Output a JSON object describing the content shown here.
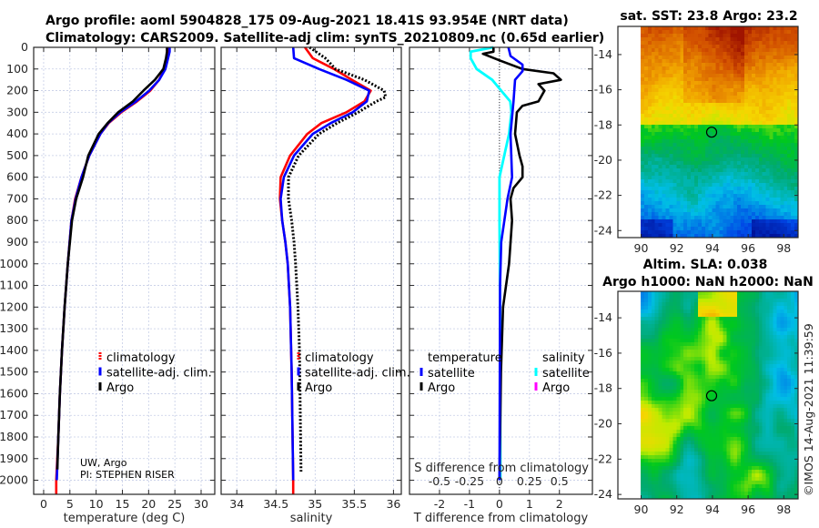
{
  "title": {
    "line1": "Argo profile: aoml 5904828_175 09-Aug-2021 18.41S 93.954E (NRT data)",
    "line2": "Climatology: CARS2009. Satellite-adj clim: synTS_20210809.nc (0.65d earlier)"
  },
  "colors": {
    "climatology": "#ff0000",
    "satellite": "#0000ff",
    "argo": "#000000",
    "salinity_satellite": "#00ffff",
    "salinity_argo": "#ff00ff",
    "grid": "#c5cde6"
  },
  "depth_axis": {
    "ticks": [
      0,
      100,
      200,
      300,
      400,
      500,
      600,
      700,
      800,
      900,
      1000,
      1100,
      1200,
      1300,
      1400,
      1500,
      1600,
      1700,
      1800,
      1900,
      2000
    ],
    "labels": [
      "0",
      "100",
      "200",
      "300",
      "400",
      "500",
      "600",
      "700",
      "800",
      "900",
      "1000",
      "1100",
      "1200",
      "1300",
      "1400",
      "1500",
      "1600",
      "1700",
      "1800",
      "1900",
      "2000"
    ],
    "ylim": [
      0,
      2065
    ]
  },
  "chart_data": [
    {
      "type": "line",
      "name": "temperature",
      "xlabel": "temperature (deg C)",
      "ylabel": "depth",
      "xlim": [
        -1.9,
        32.6
      ],
      "xticks": [
        0,
        5,
        10,
        15,
        20,
        25,
        30
      ],
      "xtick_labels": [
        "0",
        "5",
        "10",
        "15",
        "20",
        "25",
        "30"
      ],
      "legend": [
        "climatology",
        "satellite-adj. clim.",
        "Argo"
      ],
      "credit": [
        "UW, Argo",
        "PI: STEPHEN RISER"
      ],
      "series": [
        {
          "name": "climatology",
          "depth": [
            0,
            20,
            50,
            100,
            150,
            200,
            250,
            300,
            350,
            400,
            500,
            600,
            700,
            800,
            1000,
            1200,
            1400,
            1600,
            1800,
            2000,
            2065
          ],
          "values": [
            23.8,
            23.8,
            23.6,
            23.0,
            22.0,
            20.3,
            17.8,
            14.8,
            12.4,
            10.8,
            8.7,
            7.2,
            6.0,
            5.3,
            4.6,
            4.0,
            3.5,
            3.1,
            2.8,
            2.4,
            2.4
          ]
        },
        {
          "name": "satellite-adj. clim.",
          "depth": [
            0,
            20,
            50,
            100,
            150,
            200,
            250,
            300,
            350,
            400,
            500,
            600,
            700,
            800,
            1000,
            1200,
            1400,
            1600,
            1800,
            2000
          ],
          "values": [
            24.0,
            24.0,
            23.7,
            23.2,
            22.0,
            20.1,
            17.6,
            14.6,
            12.3,
            10.8,
            8.7,
            7.2,
            6.1,
            5.3,
            4.6,
            4.0,
            3.5,
            3.1,
            2.8,
            2.5
          ]
        },
        {
          "name": "Argo",
          "depth": [
            0,
            20,
            50,
            100,
            150,
            200,
            250,
            300,
            350,
            400,
            500,
            600,
            700,
            800,
            1000,
            1200,
            1400,
            1600,
            1800,
            1950
          ],
          "values": [
            23.5,
            23.5,
            23.3,
            22.8,
            21.2,
            19.0,
            17.0,
            14.2,
            12.2,
            10.5,
            8.5,
            7.5,
            6.2,
            5.4,
            4.6,
            4.0,
            3.5,
            3.1,
            2.8,
            2.6
          ]
        }
      ]
    },
    {
      "type": "line",
      "name": "salinity",
      "xlabel": "salinity",
      "xlim": [
        33.8,
        36.1
      ],
      "xticks": [
        34,
        34.5,
        35,
        35.5,
        36
      ],
      "xtick_labels": [
        "34",
        "34.5",
        "35",
        "35.5",
        "36"
      ],
      "legend": [
        "climatology",
        "satellite-adj. clim.",
        "Argo"
      ],
      "series": [
        {
          "name": "climatology",
          "depth": [
            0,
            50,
            100,
            150,
            200,
            250,
            300,
            350,
            400,
            500,
            600,
            700,
            800,
            900,
            1000,
            1200,
            1500,
            2000,
            2065
          ],
          "values": [
            34.87,
            34.97,
            35.24,
            35.47,
            35.71,
            35.63,
            35.4,
            35.08,
            34.9,
            34.68,
            34.56,
            34.55,
            34.58,
            34.62,
            34.65,
            34.68,
            34.7,
            34.72,
            34.72
          ]
        },
        {
          "name": "satellite-adj. clim.",
          "depth": [
            0,
            50,
            100,
            150,
            200,
            250,
            300,
            350,
            400,
            500,
            600,
            700,
            800,
            900,
            1000,
            1200,
            1500,
            2000
          ],
          "values": [
            34.72,
            34.73,
            35.05,
            35.4,
            35.69,
            35.66,
            35.48,
            35.2,
            34.97,
            34.73,
            34.6,
            34.56,
            34.58,
            34.62,
            34.65,
            34.68,
            34.7,
            34.72
          ]
        },
        {
          "name": "Argo",
          "depth": [
            0,
            50,
            100,
            150,
            200,
            230,
            250,
            300,
            350,
            400,
            500,
            600,
            700,
            800,
            900,
            1000,
            1200,
            1400,
            1960
          ],
          "values": [
            34.93,
            35.13,
            35.26,
            35.63,
            35.88,
            35.9,
            35.78,
            35.55,
            35.28,
            35.05,
            34.79,
            34.66,
            34.66,
            34.7,
            34.73,
            34.75,
            34.78,
            34.8,
            34.82
          ]
        }
      ]
    },
    {
      "type": "line",
      "name": "difference",
      "xlabel": "T difference from climatology",
      "xlim": [
        -3.0,
        3.1
      ],
      "xticks": [
        -2,
        -1,
        0,
        1,
        2
      ],
      "xtick_labels": [
        "-2",
        "-1",
        "0",
        "1",
        "2"
      ],
      "s_label": "S difference from climatology",
      "s_ticks": [
        -0.5,
        -0.25,
        0,
        0.25,
        0.5
      ],
      "s_tick_labels": [
        "-0.5",
        "-0.25",
        "0",
        "0.25",
        "0.5"
      ],
      "legend_temperature": {
        "heading": "temperature",
        "items": [
          "satellite",
          "Argo"
        ]
      },
      "legend_salinity": {
        "heading": "salinity",
        "items": [
          "satellite",
          "Argo"
        ]
      },
      "series": [
        {
          "name": "T satellite",
          "units": "degC",
          "depth": [
            0,
            40,
            80,
            110,
            150,
            250,
            400,
            600,
            700,
            900,
            1100,
            2000
          ],
          "values": [
            0.3,
            0.37,
            0.77,
            0.77,
            0.52,
            0.47,
            0.37,
            0.42,
            0.27,
            0.06,
            0.02,
            0.0
          ]
        },
        {
          "name": "T Argo",
          "units": "degC",
          "depth": [
            0,
            20,
            30,
            60,
            100,
            120,
            150,
            170,
            200,
            250,
            270,
            300,
            400,
            500,
            550,
            600,
            650,
            700,
            800,
            1000,
            1200,
            1500,
            2000
          ],
          "values": [
            -0.2,
            -0.2,
            -0.55,
            0.0,
            0.77,
            1.8,
            2.05,
            1.3,
            1.5,
            1.3,
            0.77,
            0.58,
            0.52,
            0.67,
            0.77,
            0.77,
            0.47,
            0.37,
            0.42,
            0.32,
            0.12,
            0.05,
            0.0
          ]
        },
        {
          "name": "S satellite",
          "units": "psu",
          "depth": [
            0,
            20,
            50,
            100,
            150,
            200,
            250,
            300,
            400,
            500,
            600,
            700,
            800,
            1200,
            2000
          ],
          "values": [
            -0.05,
            -0.24,
            -0.24,
            -0.19,
            -0.06,
            0.015,
            0.09,
            0.1,
            0.08,
            0.04,
            0.0,
            0.0,
            0.0,
            0.005,
            0.008
          ]
        }
      ]
    }
  ],
  "maps": {
    "sst": {
      "title": "sat. SST: 23.8 Argo: 23.2",
      "lon_ticks": [
        90,
        92,
        94,
        96,
        98
      ],
      "lat_ticks": [
        -14,
        -16,
        -18,
        -20,
        -22,
        -24
      ],
      "lon_range": [
        88.7,
        98.8
      ],
      "lat_range": [
        -12.4,
        -24.4
      ]
    },
    "sla": {
      "title1": "Altim. SLA: 0.038",
      "title2": "Argo h1000: NaN h2000: NaN",
      "lon_ticks": [
        90,
        92,
        94,
        96,
        98
      ],
      "lat_ticks": [
        -14,
        -16,
        -18,
        -20,
        -22,
        -24
      ],
      "lon_range": [
        88.7,
        98.8
      ],
      "lat_range": [
        -12.5,
        -24.25
      ]
    },
    "float_position": {
      "lon": 93.954,
      "lat": -18.41
    }
  },
  "watermark": "©IMOS 14-Aug-2021 11:39:59"
}
